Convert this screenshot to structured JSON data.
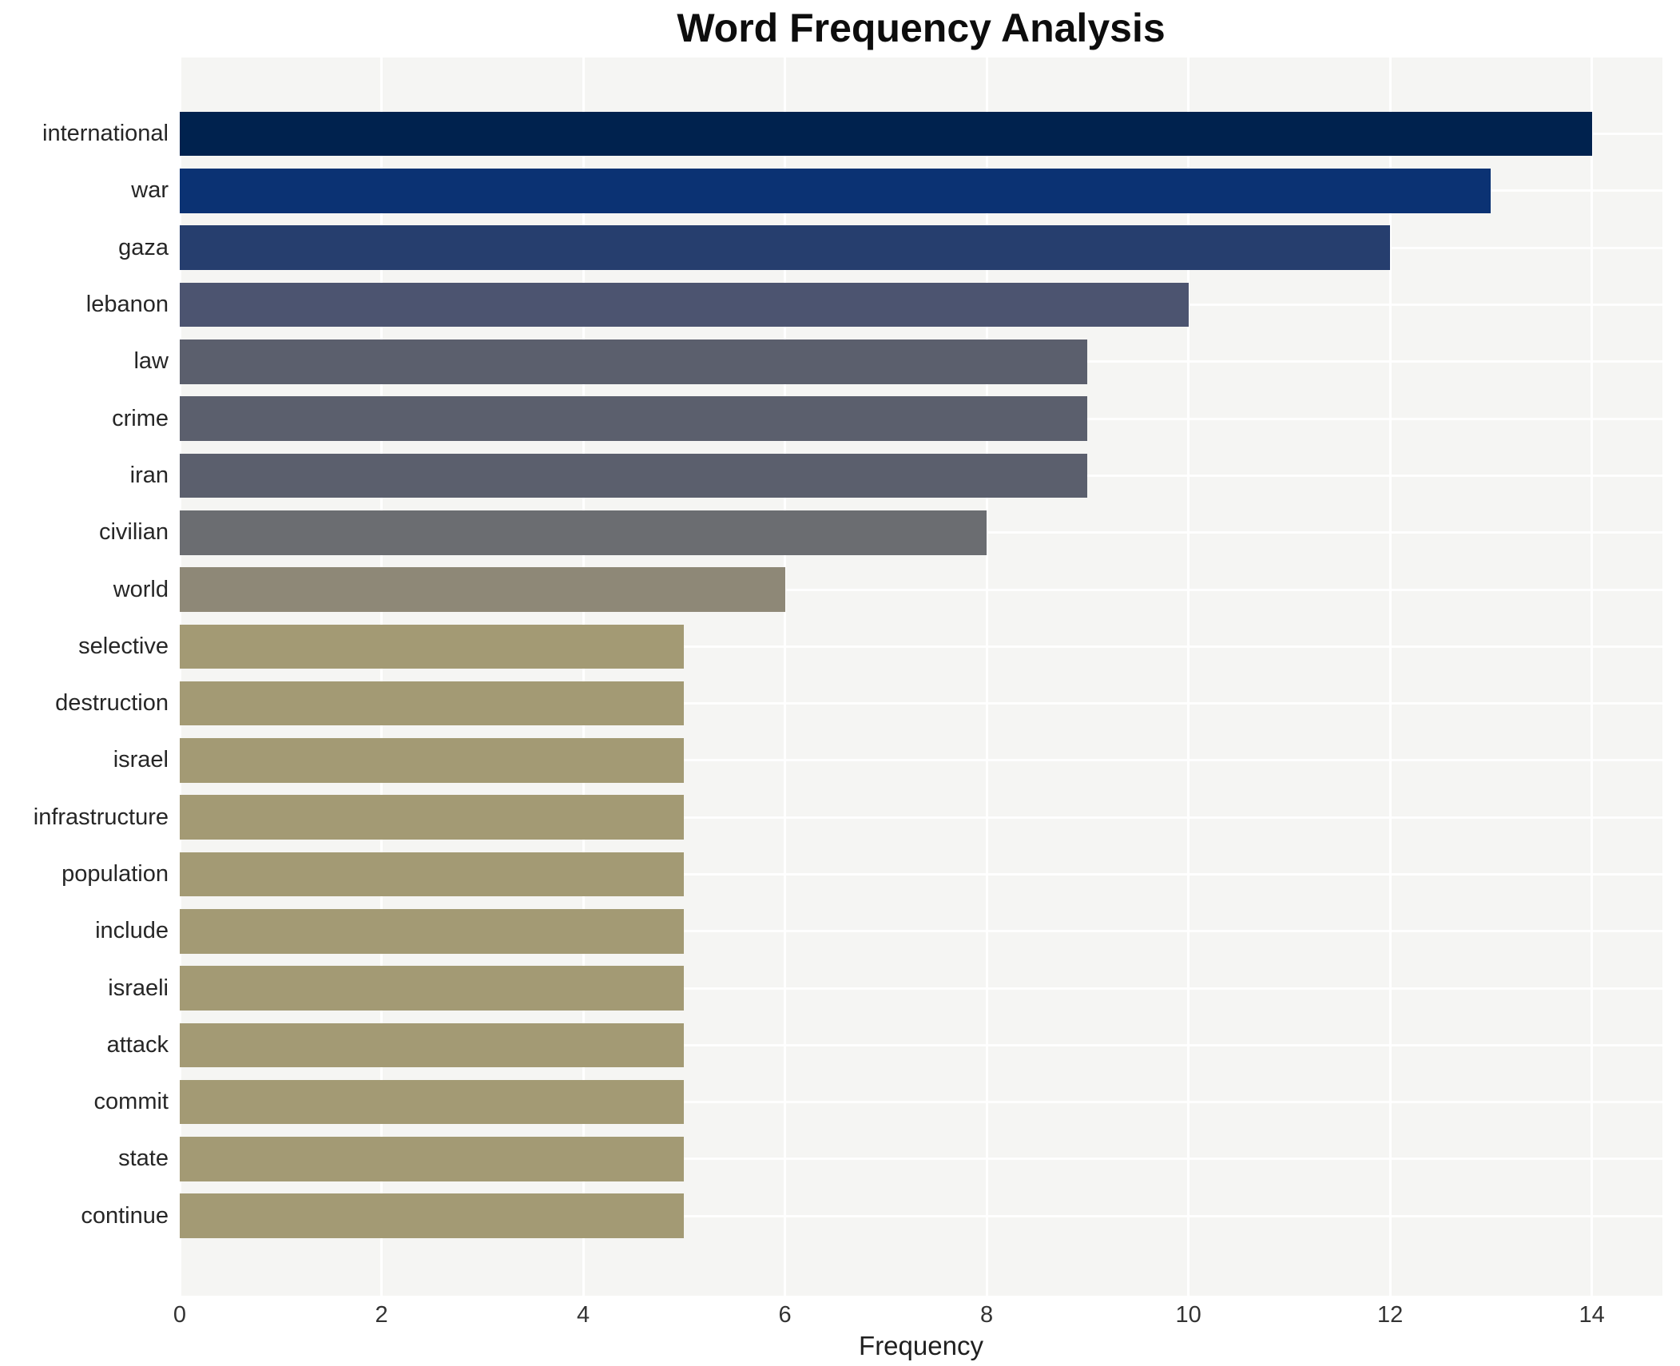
{
  "chart_data": {
    "type": "bar",
    "orientation": "horizontal",
    "title": "Word Frequency Analysis",
    "xlabel": "Frequency",
    "ylabel": "",
    "categories": [
      "international",
      "war",
      "gaza",
      "lebanon",
      "law",
      "crime",
      "iran",
      "civilian",
      "world",
      "selective",
      "destruction",
      "israel",
      "infrastructure",
      "population",
      "include",
      "israeli",
      "attack",
      "commit",
      "state",
      "continue"
    ],
    "values": [
      14,
      13,
      12,
      10,
      9,
      9,
      9,
      8,
      6,
      5,
      5,
      5,
      5,
      5,
      5,
      5,
      5,
      5,
      5,
      5
    ],
    "bar_colors": [
      "#00224e",
      "#0b3273",
      "#263e6e",
      "#4c5470",
      "#5b5f6d",
      "#5b5f6d",
      "#5b5f6d",
      "#6b6d71",
      "#8e8877",
      "#a39a74",
      "#a39a74",
      "#a39a74",
      "#a39a74",
      "#a39a74",
      "#a39a74",
      "#a39a74",
      "#a39a74",
      "#a39a74",
      "#a39a74",
      "#a39a74"
    ],
    "x_ticks": [
      0,
      2,
      4,
      6,
      8,
      10,
      12,
      14
    ],
    "xlim": [
      0,
      14.7
    ],
    "grid": "on",
    "legend": "none",
    "panel_bg": "#f5f5f3",
    "gridline_color": "#ffffff",
    "figure_bg": "#ffffff",
    "title_color": "#0d0d0d",
    "tick_label_color": "#333333",
    "category_label_color": "#262626"
  }
}
